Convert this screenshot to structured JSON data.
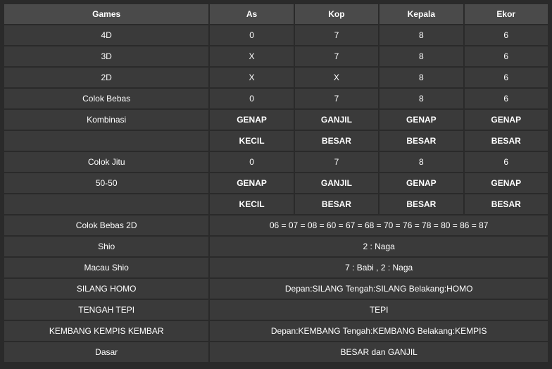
{
  "headers": [
    "Games",
    "As",
    "Kop",
    "Kepala",
    "Ekor"
  ],
  "rows": {
    "r0": {
      "g": "4D",
      "c": [
        "0",
        "7",
        "8",
        "6"
      ]
    },
    "r1": {
      "g": "3D",
      "c": [
        "X",
        "7",
        "8",
        "6"
      ]
    },
    "r2": {
      "g": "2D",
      "c": [
        "X",
        "X",
        "8",
        "6"
      ]
    },
    "r3": {
      "g": "Colok Bebas",
      "c": [
        "0",
        "7",
        "8",
        "6"
      ]
    },
    "r4": {
      "g": "Kombinasi",
      "c": [
        "GENAP",
        "GANJIL",
        "GENAP",
        "GENAP"
      ]
    },
    "r5": {
      "g": "",
      "c": [
        "KECIL",
        "BESAR",
        "BESAR",
        "BESAR"
      ]
    },
    "r6": {
      "g": "Colok Jitu",
      "c": [
        "0",
        "7",
        "8",
        "6"
      ]
    },
    "r7": {
      "g": "50-50",
      "c": [
        "GENAP",
        "GANJIL",
        "GENAP",
        "GENAP"
      ]
    },
    "r8": {
      "g": "",
      "c": [
        "KECIL",
        "BESAR",
        "BESAR",
        "BESAR"
      ]
    },
    "r9": {
      "g": "Colok Bebas 2D",
      "m": "06 = 07 = 08 = 60 = 67 = 68 = 70 = 76 = 78 = 80 = 86 = 87"
    },
    "r10": {
      "g": "Shio",
      "m": "2 : Naga"
    },
    "r11": {
      "g": "Macau Shio",
      "m": "7 : Babi , 2 : Naga"
    },
    "r12": {
      "g": "SILANG HOMO",
      "m": "Depan:SILANG Tengah:SILANG Belakang:HOMO"
    },
    "r13": {
      "g": "TENGAH TEPI",
      "m": "TEPI"
    },
    "r14": {
      "g": "KEMBANG KEMPIS KEMBAR",
      "m": "Depan:KEMBANG Tengah:KEMBANG Belakang:KEMPIS"
    },
    "r15": {
      "g": "Dasar",
      "m": "BESAR dan GANJIL"
    }
  },
  "bold_rows": [
    "r4",
    "r5",
    "r7",
    "r8"
  ],
  "colors": {
    "page_bg": "#2a2a2a",
    "header_bg": "#4a4a4a",
    "cell_bg": "#3a3a3a",
    "text": "#ffffff"
  },
  "typography": {
    "font_family": "Arial",
    "font_size_pt": 9
  }
}
